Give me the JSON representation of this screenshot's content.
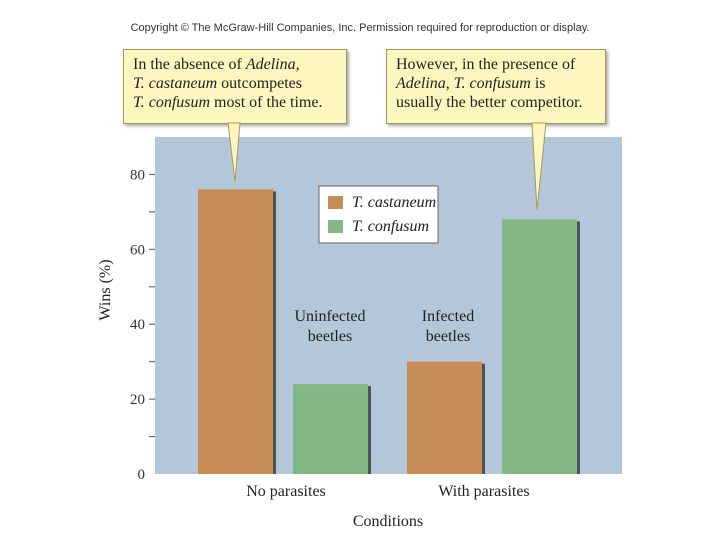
{
  "copyright": "Copyright © The McGraw-Hill Companies, Inc. Permission required for reproduction or display.",
  "callouts": {
    "left": {
      "line1_pre": "In the absence of ",
      "line1_em": "Adelina",
      "line1_post": ",",
      "line2_em": "T. castaneum",
      "line2_post": " outcompetes",
      "line3_em": "T. confusum",
      "line3_post": " most of the time."
    },
    "right": {
      "line1": "However, in the presence of",
      "line2_em1": "Adelina",
      "line2_mid": ", ",
      "line2_em2": "T. confusum",
      "line2_post": " is",
      "line3": "usually the better competitor."
    }
  },
  "colors": {
    "plot_bg": "#b4c6da",
    "castaneum": "#c68d55",
    "confusum": "#83b884",
    "callout_bg": "#fdf7bf"
  },
  "chart_data": {
    "type": "bar",
    "categories": [
      "No parasites",
      "With parasites"
    ],
    "xlabel": "Conditions",
    "ylabel": "Wins (%)",
    "ylim": [
      0,
      90
    ],
    "yticks": [
      0,
      20,
      40,
      60,
      80
    ],
    "series": [
      {
        "name": "T. castaneum",
        "values": [
          76,
          30
        ]
      },
      {
        "name": "T. confusum",
        "values": [
          24,
          68
        ]
      }
    ],
    "bar_annotations": [
      {
        "line1": "Uninfected",
        "line2": "beetles"
      },
      {
        "line1": "Infected",
        "line2": "beetles"
      }
    ],
    "legend_position": "top-center",
    "grid": false
  }
}
